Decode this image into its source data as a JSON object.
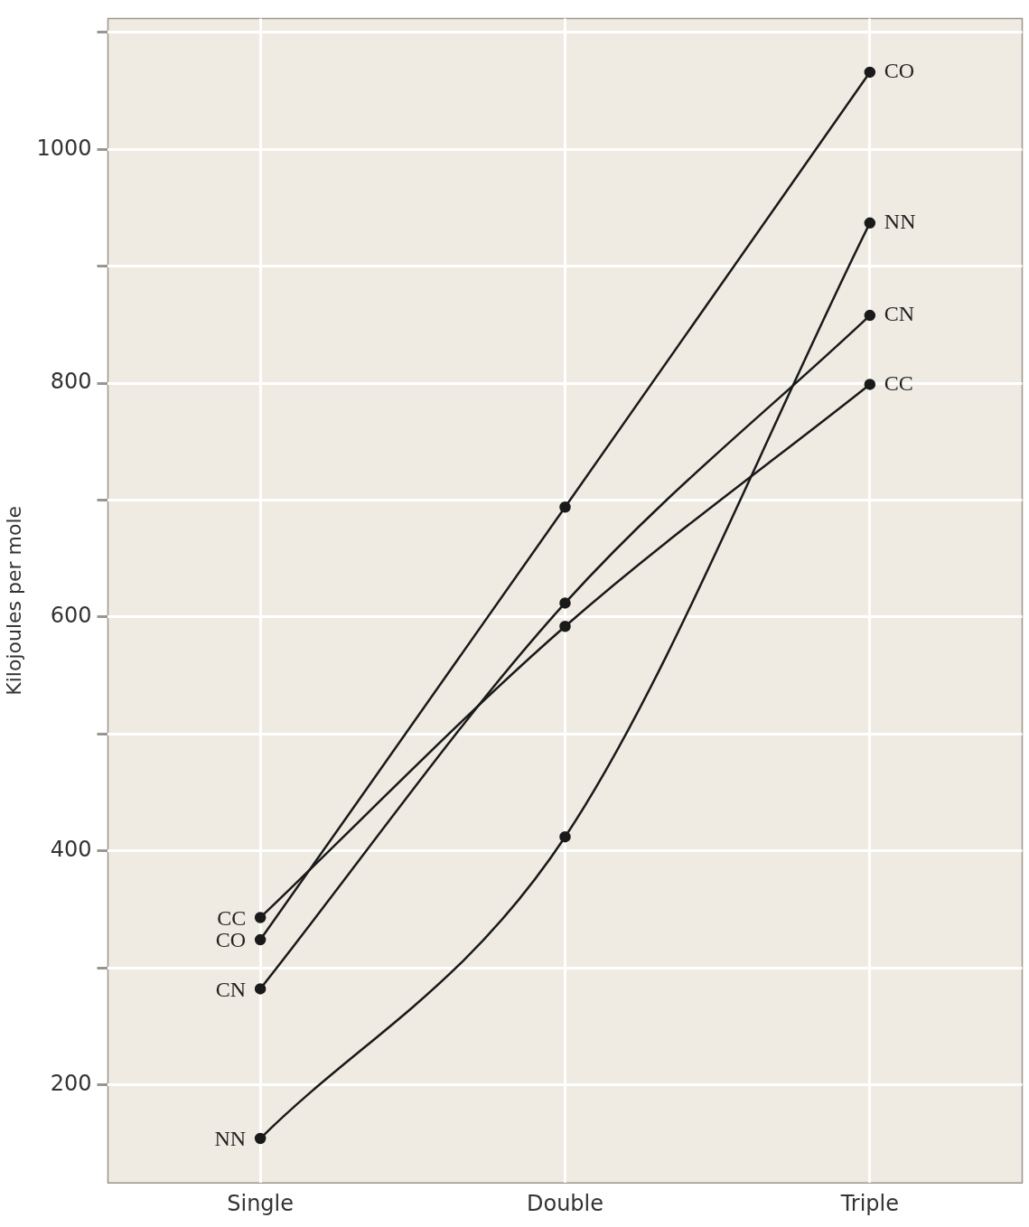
{
  "chart_data": {
    "type": "line",
    "ylabel": "Kilojoules per mole",
    "categories": [
      "Single",
      "Double",
      "Triple"
    ],
    "series": [
      {
        "name": "CO",
        "color": "#1a1a1a",
        "values": [
          324,
          694,
          1066
        ]
      },
      {
        "name": "NN",
        "color": "#1a1a1a",
        "values": [
          154,
          412,
          937
        ]
      },
      {
        "name": "CN",
        "color": "#1a1a1a",
        "values": [
          282,
          612,
          858
        ]
      },
      {
        "name": "CC",
        "color": "#1a1a1a",
        "values": [
          343,
          592,
          799
        ]
      }
    ],
    "ylim": [
      116,
      1112
    ],
    "yticks": [
      {
        "value": 200,
        "label": "200"
      },
      {
        "value": 300,
        "label": null
      },
      {
        "value": 400,
        "label": "400"
      },
      {
        "value": 500,
        "label": null
      },
      {
        "value": 600,
        "label": "600"
      },
      {
        "value": 700,
        "label": null
      },
      {
        "value": 800,
        "label": "800"
      },
      {
        "value": 900,
        "label": null
      },
      {
        "value": 1000,
        "label": "1000"
      },
      {
        "value": 1100,
        "label": null
      }
    ],
    "grid": true,
    "legend": false,
    "marker": "circle",
    "line_style": "solid"
  }
}
